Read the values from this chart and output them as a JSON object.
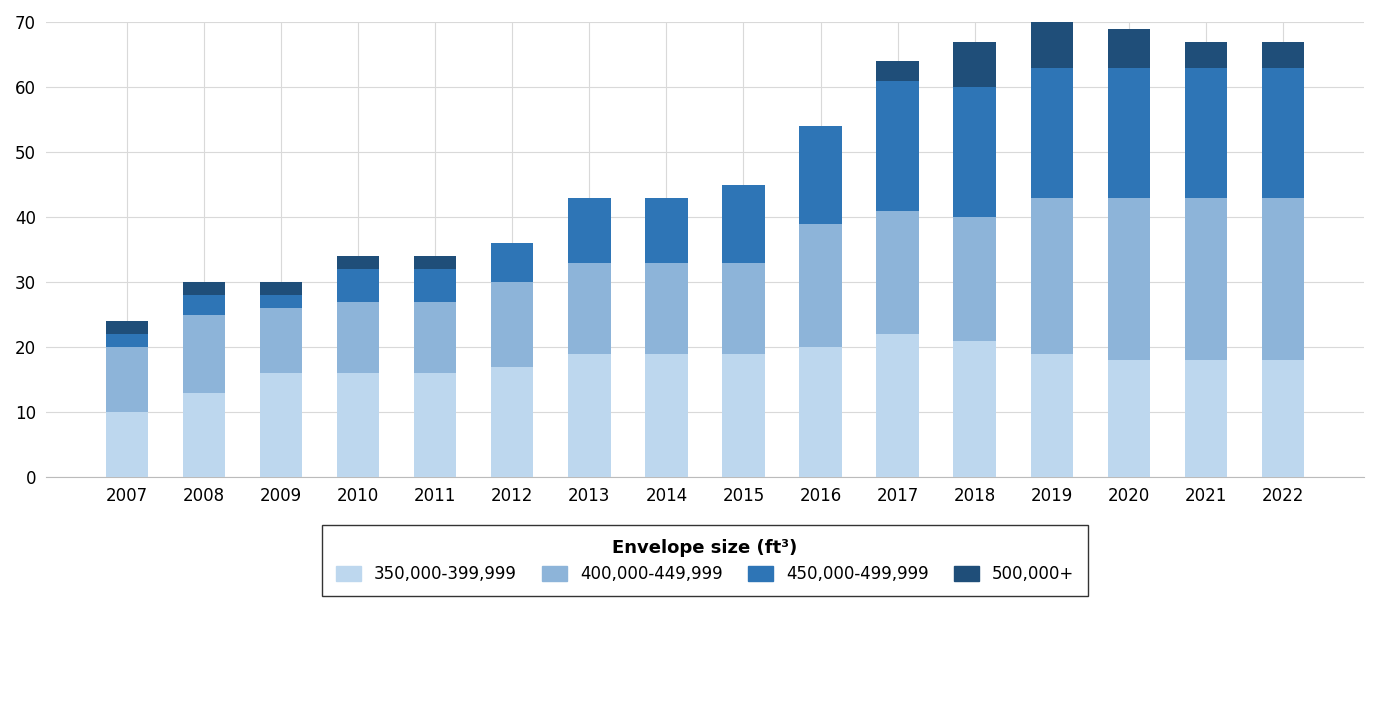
{
  "years": [
    "2007",
    "2008",
    "2009",
    "2010",
    "2011",
    "2012",
    "2013",
    "2014",
    "2015",
    "2016",
    "2017",
    "2018",
    "2019",
    "2020",
    "2021",
    "2022"
  ],
  "seg1": [
    10,
    13,
    16,
    16,
    16,
    17,
    19,
    19,
    19,
    20,
    22,
    21,
    19,
    18,
    18,
    18
  ],
  "seg2": [
    10,
    12,
    10,
    11,
    11,
    13,
    14,
    14,
    14,
    19,
    19,
    19,
    24,
    25,
    25,
    25
  ],
  "seg3": [
    2,
    3,
    2,
    5,
    5,
    6,
    10,
    10,
    12,
    15,
    20,
    20,
    20,
    20,
    20,
    20
  ],
  "seg4": [
    2,
    2,
    2,
    2,
    2,
    0,
    0,
    0,
    0,
    0,
    3,
    7,
    7,
    6,
    4,
    4
  ],
  "colors": [
    "#BDD7EE",
    "#8DB4D9",
    "#2E75B6",
    "#1F4E79"
  ],
  "labels": [
    "350,000-399,999",
    "400,000-449,999",
    "450,000-499,999",
    "500,000+"
  ],
  "legend_title": "Envelope size (ft³)",
  "ylim": [
    0,
    70
  ],
  "yticks": [
    0,
    10,
    20,
    30,
    40,
    50,
    60,
    70
  ],
  "background_color": "#ffffff",
  "grid_color": "#D9D9D9",
  "figsize": [
    13.79,
    7.07
  ],
  "dpi": 100
}
